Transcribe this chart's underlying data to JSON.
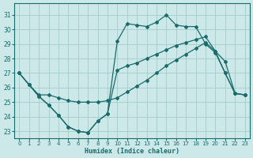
{
  "xlabel": "Humidex (Indice chaleur)",
  "bg_color": "#cce8e8",
  "grid_color": "#aacece",
  "line_color": "#1a6b6b",
  "ylim": [
    22.5,
    31.8
  ],
  "xlim": [
    -0.5,
    23.5
  ],
  "yticks": [
    23,
    24,
    25,
    26,
    27,
    28,
    29,
    30,
    31
  ],
  "xticks": [
    0,
    1,
    2,
    3,
    4,
    5,
    6,
    7,
    8,
    9,
    10,
    11,
    12,
    13,
    14,
    15,
    16,
    17,
    18,
    19,
    20,
    21,
    22,
    23
  ],
  "curve1_x": [
    0,
    1,
    2,
    3,
    4,
    5,
    6,
    7,
    8,
    9,
    10,
    11,
    12,
    13,
    14,
    15,
    16,
    17,
    18,
    19,
    20,
    21,
    22,
    23
  ],
  "curve1_y": [
    27.0,
    26.2,
    25.4,
    24.8,
    24.1,
    23.3,
    23.0,
    22.9,
    23.7,
    24.2,
    29.2,
    30.4,
    30.3,
    30.2,
    30.5,
    31.0,
    30.3,
    30.2,
    30.2,
    29.0,
    28.4,
    27.0,
    25.6,
    25.5
  ],
  "curve2_x": [
    0,
    1,
    2,
    3,
    4,
    5,
    6,
    7,
    8,
    9,
    10,
    11,
    12,
    13,
    14,
    15,
    16,
    17,
    18,
    19,
    20,
    21,
    22,
    23
  ],
  "curve2_y": [
    27.0,
    26.2,
    25.5,
    25.5,
    25.3,
    25.1,
    25.0,
    25.0,
    25.0,
    25.1,
    25.3,
    25.7,
    26.1,
    26.5,
    27.0,
    27.5,
    27.9,
    28.3,
    28.7,
    29.1,
    28.5,
    27.8,
    25.6,
    25.5
  ],
  "curve3_x": [
    0,
    1,
    2,
    3,
    4,
    5,
    6,
    7,
    8,
    9,
    10,
    11,
    12,
    13,
    14,
    15,
    16,
    17,
    18,
    19,
    20,
    21,
    22,
    23
  ],
  "curve3_y": [
    27.0,
    26.2,
    25.4,
    24.8,
    24.1,
    23.3,
    23.0,
    22.9,
    23.7,
    24.2,
    27.2,
    27.5,
    27.7,
    28.0,
    28.3,
    28.6,
    28.9,
    29.1,
    29.3,
    29.5,
    28.5,
    27.0,
    25.6,
    25.5
  ]
}
